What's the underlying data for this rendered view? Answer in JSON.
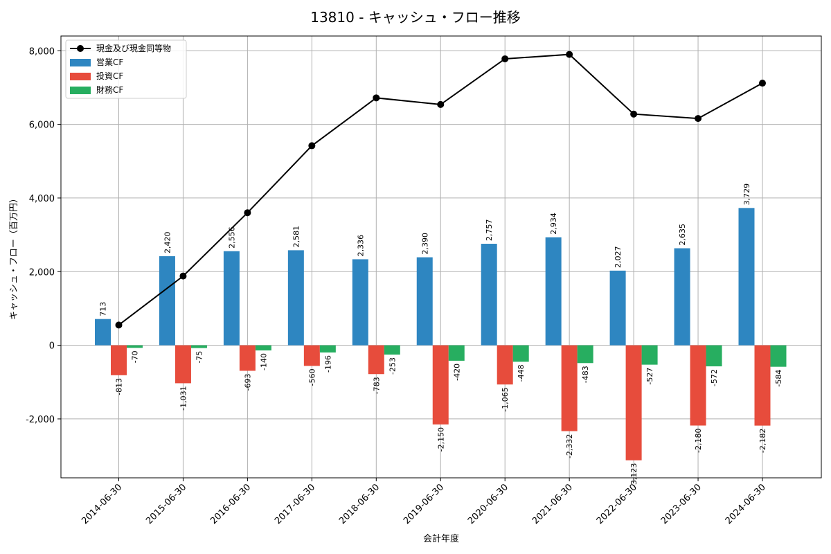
{
  "chart_data": {
    "type": "bar",
    "title": "13810 - キャッシュ・フロー推移",
    "xlabel": "会計年度",
    "ylabel": "キャッシュ・フロー（百万円）",
    "ylim": [
      -3600,
      8400
    ],
    "yticks": [
      -2000,
      0,
      2000,
      4000,
      6000,
      8000
    ],
    "ytick_labels": [
      "-2,000",
      "0",
      "2,000",
      "4,000",
      "6,000",
      "8,000"
    ],
    "grid": true,
    "legend_position": "top-left",
    "categories": [
      "2014-06-30",
      "2015-06-30",
      "2016-06-30",
      "2017-06-30",
      "2018-06-30",
      "2019-06-30",
      "2020-06-30",
      "2021-06-30",
      "2022-06-30",
      "2023-06-30",
      "2024-06-30"
    ],
    "series": [
      {
        "name": "営業CF",
        "type": "bar",
        "color": "#2e86c1",
        "values": [
          713,
          2420,
          2556,
          2581,
          2336,
          2390,
          2757,
          2934,
          2027,
          2635,
          3729
        ],
        "labels": [
          "713",
          "2,420",
          "2,556",
          "2,581",
          "2,336",
          "2,390",
          "2,757",
          "2,934",
          "2,027",
          "2,635",
          "3,729"
        ]
      },
      {
        "name": "投資CF",
        "type": "bar",
        "color": "#e74c3c",
        "values": [
          -813,
          -1031,
          -693,
          -560,
          -783,
          -2150,
          -1065,
          -2332,
          -3123,
          -2180,
          -2182
        ],
        "labels": [
          "-813",
          "-1,031",
          "-693",
          "-560",
          "-783",
          "-2,150",
          "-1,065",
          "-2,332",
          "-3,123",
          "-2,180",
          "-2,182"
        ]
      },
      {
        "name": "財務CF",
        "type": "bar",
        "color": "#27ae60",
        "values": [
          -70,
          -75,
          -140,
          -196,
          -253,
          -420,
          -448,
          -483,
          -527,
          -572,
          -584
        ],
        "labels": [
          "-70",
          "-75",
          "-140",
          "-196",
          "-253",
          "-420",
          "-448",
          "-483",
          "-527",
          "-572",
          "-584"
        ]
      },
      {
        "name": "現金及び現金同等物",
        "type": "line",
        "color": "#000000",
        "values": [
          550,
          1880,
          3600,
          5420,
          6720,
          6540,
          7780,
          7900,
          6280,
          6160,
          7120
        ]
      }
    ]
  }
}
